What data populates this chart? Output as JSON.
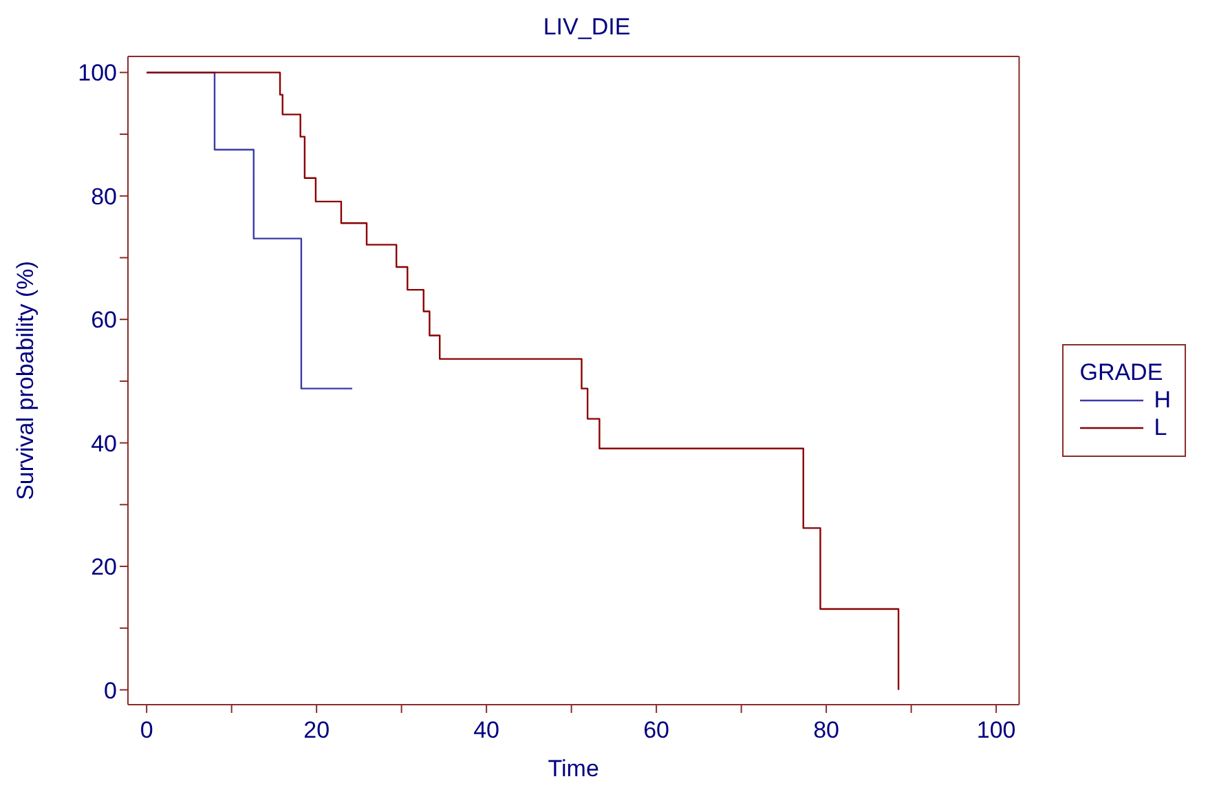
{
  "chart_data": {
    "type": "step",
    "title": "LIV_DIE",
    "xlabel": "Time",
    "ylabel": "Survival probability (%)",
    "legend_title": "GRADE",
    "legend": "right",
    "grid": false,
    "marker": "none",
    "line_style": "solid",
    "xlim": [
      -2.2,
      102.7
    ],
    "ylim": [
      -2.4,
      102.6
    ],
    "xticks": [
      0,
      {
        "value": 10,
        "label": null
      },
      20,
      {
        "value": 30,
        "label": null
      },
      40,
      {
        "value": 50,
        "label": null
      },
      60,
      {
        "value": 70,
        "label": null
      },
      80,
      {
        "value": 90,
        "label": null
      },
      100
    ],
    "yticks": [
      0,
      {
        "value": 10,
        "label": null
      },
      20,
      {
        "value": 30,
        "label": null
      },
      40,
      {
        "value": 50,
        "label": null
      },
      60,
      {
        "value": 70,
        "label": null
      },
      80,
      {
        "value": 90,
        "label": null
      },
      100
    ],
    "series": [
      {
        "name": "H",
        "color": "#3a3aa8",
        "x": [
          0,
          8,
          12.6,
          18.2,
          24.2
        ],
        "values": [
          100,
          87.5,
          73.1,
          48.8,
          48.8
        ]
      },
      {
        "name": "L",
        "color": "#8b0000",
        "x": [
          0,
          15.7,
          16.0,
          18.1,
          18.6,
          19.9,
          22.9,
          25.9,
          29.4,
          30.7,
          32.6,
          33.3,
          34.5,
          51.2,
          51.9,
          53.3,
          77.3,
          79.3,
          88.5
        ],
        "values": [
          100,
          96.4,
          93.2,
          89.6,
          82.9,
          79.1,
          75.6,
          72.1,
          68.5,
          64.8,
          61.3,
          57.4,
          53.6,
          48.8,
          43.9,
          39.1,
          26.2,
          13.1,
          0
        ]
      }
    ]
  }
}
